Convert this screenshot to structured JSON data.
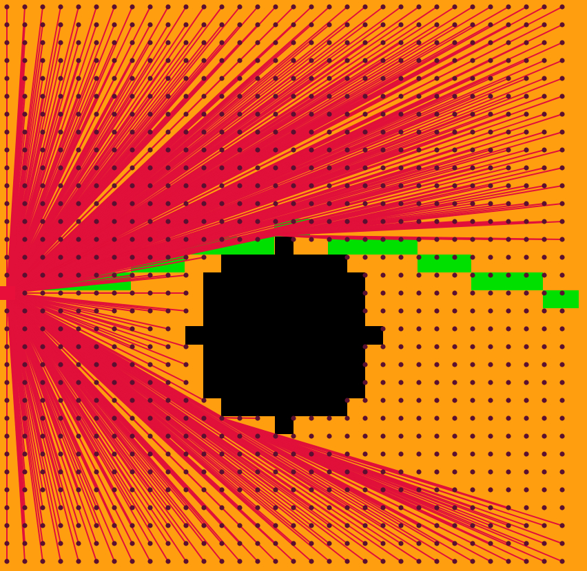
{
  "scene": {
    "type": "visibility-graph",
    "colors": {
      "background": "#ff9f10",
      "obstacle": "#000000",
      "path_area": "#00e000",
      "edge": "#e0103a",
      "node": "#5a1030",
      "source": "#e8103a"
    },
    "grid": {
      "cols": 32,
      "rows": 32
    },
    "source_cell": [
      0,
      16
    ],
    "obstacle_rows": [
      {
        "row": 13,
        "from": 15,
        "to": 15
      },
      {
        "row": 14,
        "from": 12,
        "to": 18
      },
      {
        "row": 15,
        "from": 11,
        "to": 19
      },
      {
        "row": 16,
        "from": 11,
        "to": 19
      },
      {
        "row": 17,
        "from": 11,
        "to": 19
      },
      {
        "row": 18,
        "from": 10,
        "to": 20
      },
      {
        "row": 19,
        "from": 11,
        "to": 19
      },
      {
        "row": 20,
        "from": 11,
        "to": 19
      },
      {
        "row": 21,
        "from": 11,
        "to": 19
      },
      {
        "row": 22,
        "from": 12,
        "to": 18
      },
      {
        "row": 23,
        "from": 15,
        "to": 15
      }
    ],
    "path_cells": [
      [
        2,
        15
      ],
      [
        3,
        15
      ],
      [
        4,
        15
      ],
      [
        5,
        15
      ],
      [
        6,
        15
      ],
      [
        7,
        14
      ],
      [
        8,
        14
      ],
      [
        9,
        14
      ],
      [
        10,
        13
      ],
      [
        11,
        13
      ],
      [
        12,
        13
      ],
      [
        13,
        13
      ],
      [
        14,
        13
      ],
      [
        15,
        12
      ],
      [
        16,
        12
      ],
      [
        18,
        13
      ],
      [
        19,
        13
      ],
      [
        20,
        13
      ],
      [
        21,
        13
      ],
      [
        22,
        13
      ],
      [
        23,
        14
      ],
      [
        24,
        14
      ],
      [
        25,
        14
      ],
      [
        26,
        15
      ],
      [
        27,
        15
      ],
      [
        28,
        15
      ],
      [
        29,
        15
      ],
      [
        30,
        16
      ],
      [
        31,
        16
      ]
    ]
  }
}
